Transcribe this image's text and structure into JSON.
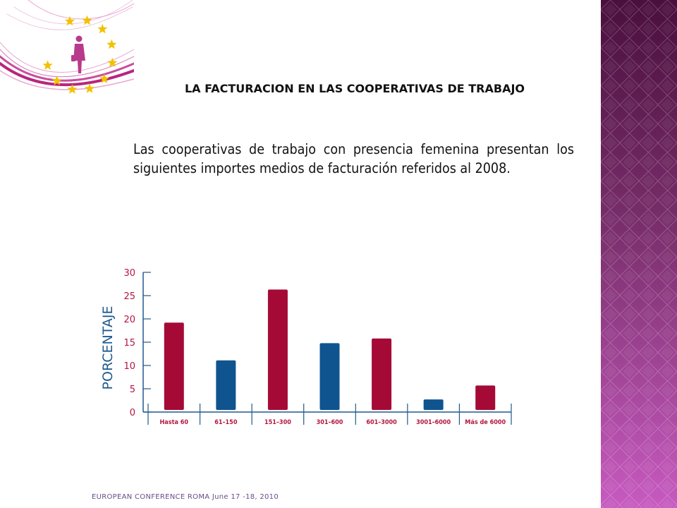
{
  "slide": {
    "title": "LA FACTURACION EN LAS COOPERATIVAS DE TRABAJO",
    "intro": "Las cooperativas de trabajo con presencia femenina presentan los siguientes importes medios de facturación referidos al 2008.",
    "footer": "EUROPEAN CONFERENCE ROMA June 17 -18, 2010"
  },
  "colors": {
    "red": "#a50a36",
    "blue": "#0f548f",
    "axis": "#1f5a8c",
    "tick_label": "#b3163f",
    "ylabel": "#1f5a8c",
    "star": "#f2c200",
    "sidebar_dark": "#4a0f3d",
    "sidebar_light": "#c75ac0"
  },
  "chart_data": {
    "type": "bar",
    "categories": [
      "Hasta 60",
      "61–150",
      "151–300",
      "301–600",
      "601–3000",
      "3001–6000",
      "Más de 6000"
    ],
    "values": [
      19.2,
      11.1,
      26.3,
      14.8,
      15.8,
      2.7,
      5.7
    ],
    "bar_colors": [
      "red",
      "blue",
      "red",
      "blue",
      "red",
      "blue",
      "red"
    ],
    "ylabel": "PORCENTAJE",
    "xlabel": "",
    "ylim": [
      0,
      30
    ],
    "yticks": [
      0,
      5,
      10,
      15,
      20,
      25,
      30
    ],
    "grid": false
  }
}
